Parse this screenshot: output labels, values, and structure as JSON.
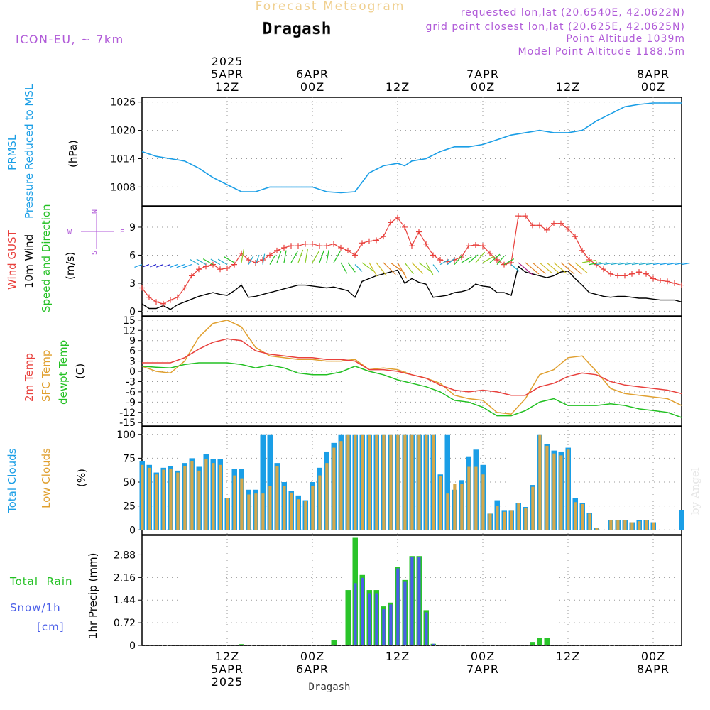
{
  "header": {
    "subtitle": "Forecast Meteogram",
    "location": "Dragash",
    "model": "ICON-EU, ~ 7km",
    "requested": "requested lon,lat (20.6540E, 42.0622N)",
    "grid_point": "grid point closest lon,lat (20.625E, 42.0625N)",
    "point_altitude": "Point Altitude 1039m",
    "model_altitude": "Model Point Altitude 1188.5m",
    "footer": "Dragash",
    "credit": "by Angel"
  },
  "time_axis": {
    "top_labels": [
      {
        "h": 12,
        "lines": [
          "2025",
          "5APR",
          "12Z"
        ]
      },
      {
        "h": 24,
        "lines": [
          "6APR",
          "00Z"
        ]
      },
      {
        "h": 36,
        "lines": [
          "12Z"
        ]
      },
      {
        "h": 48,
        "lines": [
          "7APR",
          "00Z"
        ]
      },
      {
        "h": 60,
        "lines": [
          "12Z"
        ]
      },
      {
        "h": 72,
        "lines": [
          "8APR",
          "00Z"
        ]
      }
    ],
    "bottom_labels": [
      {
        "h": 12,
        "lines": [
          "12Z",
          "5APR",
          "2025"
        ]
      },
      {
        "h": 24,
        "lines": [
          "00Z",
          "6APR"
        ]
      },
      {
        "h": 36,
        "lines": [
          "12Z"
        ]
      },
      {
        "h": 48,
        "lines": [
          "00Z",
          "7APR"
        ]
      },
      {
        "h": 60,
        "lines": [
          "12Z"
        ]
      },
      {
        "h": 72,
        "lines": [
          "00Z",
          "8APR"
        ]
      }
    ]
  },
  "panels": {
    "pressure": {
      "label1": "PRMSL",
      "label2": "Pressure Reduced to MSL",
      "unit": "(hPa)"
    },
    "wind": {
      "label_gust": "Wind GUST",
      "label_wind": "10m Wind",
      "label_dir": "Speed and Direction",
      "unit": "(m/s)",
      "compass_n": "N",
      "compass_s": "S",
      "compass_w": "W",
      "compass_e": "E"
    },
    "temp": {
      "label1": "2m Temp",
      "label2": "SFC Temp",
      "label3": "dewpt Temp",
      "unit": "(C)"
    },
    "clouds": {
      "label1": "Total Clouds",
      "label2": "Low Clouds",
      "unit": "(%)"
    },
    "precip": {
      "label_rain": "Total  Rain",
      "label_snow": "Snow/1h",
      "label_cm": "[cm]",
      "ylabel": "1hr Precip (mm)"
    }
  },
  "colors": {
    "pressure": "#1a9ee6",
    "gust": "#e8403c",
    "wind": "#000000",
    "temp2m": "#e8403c",
    "sfc": "#e0a030",
    "dewpt": "#22c022",
    "total_cloud": "#1a9ee6",
    "low_cloud": "#d4a84c",
    "rain": "#2ac42a",
    "snow": "#4a5ee8",
    "purple": "#b05ad8",
    "title_orange": "#f0d090"
  },
  "chart_data": [
    {
      "type": "line",
      "title": "PRMSL",
      "ylabel": "(hPa)",
      "yticks": [
        1008,
        1014,
        1020,
        1026
      ],
      "ylim": [
        1004,
        1027
      ],
      "x_hours": [
        0,
        2,
        4,
        6,
        8,
        10,
        12,
        14,
        16,
        18,
        20,
        22,
        24,
        26,
        28,
        30,
        32,
        34,
        36,
        37,
        38,
        40,
        42,
        44,
        46,
        48,
        50,
        52,
        54,
        56,
        58,
        60,
        62,
        64,
        66,
        68,
        70,
        72,
        74,
        76
      ],
      "series": [
        {
          "name": "PRMSL",
          "values": [
            1015.5,
            1014.5,
            1014,
            1013.5,
            1012,
            1010,
            1008.5,
            1007,
            1007,
            1008,
            1008,
            1008,
            1008,
            1007,
            1006.8,
            1007,
            1011,
            1012.5,
            1013,
            1012.5,
            1013.5,
            1014,
            1015.5,
            1016.5,
            1016.5,
            1017,
            1018,
            1019,
            1019.5,
            1020,
            1019.5,
            1019.5,
            1020,
            1022,
            1023.5,
            1025,
            1025.5,
            1025.8,
            1025.8,
            1025.8
          ]
        }
      ]
    },
    {
      "type": "line",
      "title": "Wind GUST / 10m Wind",
      "ylabel": "(m/s)",
      "yticks": [
        0,
        3,
        6,
        9
      ],
      "ylim": [
        -0.5,
        11.2
      ],
      "x_hours": [
        0,
        1,
        2,
        3,
        4,
        5,
        6,
        7,
        8,
        9,
        10,
        11,
        12,
        13,
        14,
        15,
        16,
        17,
        18,
        19,
        20,
        21,
        22,
        23,
        24,
        25,
        26,
        27,
        28,
        29,
        30,
        31,
        32,
        33,
        34,
        35,
        36,
        37,
        38,
        39,
        40,
        41,
        42,
        43,
        44,
        45,
        46,
        47,
        48,
        49,
        50,
        51,
        52,
        53,
        54,
        55,
        56,
        57,
        58,
        59,
        60,
        61,
        62,
        63,
        64,
        65,
        66,
        67,
        68,
        69,
        70,
        71,
        72,
        73,
        74,
        75,
        76
      ],
      "series": [
        {
          "name": "Wind GUST",
          "values": [
            2.5,
            1.5,
            1,
            0.8,
            1.2,
            1.5,
            2.5,
            3.8,
            4.5,
            4.8,
            5,
            4.5,
            4.6,
            5,
            6.2,
            5.5,
            5.2,
            5.5,
            6,
            6.5,
            6.8,
            7,
            7,
            7.2,
            7.2,
            7,
            7,
            7.2,
            6.8,
            6.5,
            6,
            7.3,
            7.5,
            7.6,
            8,
            9.5,
            10,
            9,
            7,
            8.5,
            7.2,
            6,
            5.5,
            5.3,
            5.5,
            5.8,
            7,
            7.1,
            7,
            6.2,
            5.5,
            5,
            5.2,
            10.2,
            10.2,
            9.2,
            9.2,
            8.7,
            9.4,
            9.4,
            8.8,
            8,
            6.5,
            5.5,
            5,
            4.5,
            4,
            3.8,
            3.8,
            4,
            4.2,
            4,
            3.5,
            3.3,
            3.2,
            3,
            2.8
          ]
        },
        {
          "name": "10m Wind",
          "values": [
            0.8,
            0.3,
            0.3,
            0.6,
            0.2,
            0.7,
            1,
            1.3,
            1.6,
            1.8,
            2,
            1.8,
            1.7,
            2.2,
            2.8,
            1.5,
            1.6,
            1.8,
            2,
            2.2,
            2.4,
            2.6,
            2.8,
            2.8,
            2.7,
            2.6,
            2.5,
            2.6,
            2.4,
            2.2,
            1.5,
            3.2,
            3.5,
            3.8,
            4,
            4.2,
            4.4,
            3,
            3.5,
            3.1,
            2.9,
            1.5,
            1.6,
            1.7,
            2,
            2.1,
            2.3,
            2.9,
            2.7,
            2.6,
            2,
            2,
            1.7,
            4.8,
            4.2,
            4,
            3.8,
            3.6,
            3.8,
            4.2,
            4.3,
            3.5,
            2.8,
            2,
            1.8,
            1.6,
            1.5,
            1.6,
            1.6,
            1.5,
            1.4,
            1.4,
            1.3,
            1.2,
            1.2,
            1.2,
            1
          ]
        }
      ]
    },
    {
      "type": "line",
      "title": "Temperature",
      "ylabel": "(C)",
      "yticks": [
        -15,
        -12,
        -9,
        -6,
        -3,
        0,
        3,
        6,
        9,
        12,
        15
      ],
      "ylim": [
        -16,
        16
      ],
      "x_hours": [
        0,
        2,
        4,
        6,
        8,
        10,
        12,
        14,
        16,
        18,
        20,
        22,
        24,
        26,
        28,
        30,
        32,
        34,
        36,
        38,
        40,
        42,
        44,
        46,
        48,
        50,
        52,
        54,
        56,
        58,
        60,
        62,
        64,
        66,
        68,
        70,
        72,
        74,
        76
      ],
      "series": [
        {
          "name": "2m Temp",
          "values": [
            2.5,
            2.5,
            2.5,
            4,
            6.5,
            8.5,
            9.5,
            9,
            6,
            5,
            4.5,
            4,
            4,
            3.5,
            3.5,
            3,
            0.5,
            0.5,
            0,
            -1,
            -2,
            -4,
            -5.5,
            -6,
            -5.5,
            -6,
            -7,
            -7,
            -4.5,
            -3.5,
            -1.5,
            -0.5,
            -1,
            -3,
            -4,
            -4.5,
            -5,
            -5.5,
            -6.5
          ]
        },
        {
          "name": "SFC Temp",
          "values": [
            1.5,
            0,
            -0.5,
            3,
            10,
            14,
            15,
            13,
            7,
            4.5,
            4,
            3.5,
            3.5,
            3,
            3,
            3.5,
            0.5,
            1,
            0.5,
            -1,
            -2,
            -3.5,
            -7,
            -8,
            -8.5,
            -12,
            -12.5,
            -8,
            -1,
            0.5,
            4,
            4.5,
            0,
            -5,
            -6.5,
            -7,
            -7.5,
            -8,
            -10
          ]
        },
        {
          "name": "dewpt Temp",
          "values": [
            1.5,
            1.2,
            1,
            2,
            2.5,
            2.5,
            2.5,
            2,
            1,
            1.8,
            1,
            -0.5,
            -1,
            -1,
            -0.2,
            1.5,
            0,
            -1,
            -2.5,
            -3.5,
            -4.5,
            -6,
            -8.5,
            -9,
            -10.5,
            -13,
            -13,
            -11.5,
            -9,
            -8,
            -10,
            -10,
            -10,
            -9.5,
            -10,
            -11,
            -11.5,
            -12,
            -13.5
          ]
        }
      ]
    },
    {
      "type": "bar",
      "title": "Clouds",
      "ylabel": "(%)",
      "yticks": [
        0,
        25,
        50,
        75,
        100
      ],
      "ylim": [
        -5,
        108
      ],
      "x_hours": [
        0,
        1,
        2,
        3,
        4,
        5,
        6,
        7,
        8,
        9,
        10,
        11,
        12,
        13,
        14,
        15,
        16,
        17,
        18,
        19,
        20,
        21,
        22,
        23,
        24,
        25,
        26,
        27,
        28,
        29,
        30,
        31,
        32,
        33,
        34,
        35,
        36,
        37,
        38,
        39,
        40,
        41,
        42,
        43,
        44,
        45,
        46,
        47,
        48,
        49,
        50,
        51,
        52,
        53,
        54,
        55,
        56,
        57,
        58,
        59,
        60,
        61,
        62,
        63,
        64,
        65,
        66,
        67,
        68,
        69,
        70,
        71,
        72,
        73,
        74,
        75,
        76
      ],
      "series": [
        {
          "name": "Total Clouds",
          "values": [
            72,
            68,
            60,
            65,
            67,
            62,
            70,
            75,
            66,
            79,
            74,
            74,
            33,
            64,
            64,
            42,
            42,
            100,
            100,
            70,
            50,
            41,
            36,
            31,
            50,
            65,
            82,
            91,
            100,
            100,
            100,
            100,
            100,
            100,
            100,
            100,
            100,
            100,
            100,
            100,
            100,
            100,
            58,
            100,
            42,
            52,
            77,
            84,
            68,
            17,
            31,
            20,
            20,
            28,
            24,
            47,
            100,
            90,
            83,
            82,
            86,
            33,
            28,
            18,
            2,
            0,
            10,
            10,
            10,
            8,
            10,
            10,
            8,
            0,
            0,
            0,
            21
          ]
        },
        {
          "name": "Low Clouds",
          "values": [
            68,
            65,
            58,
            63,
            64,
            60,
            67,
            72,
            62,
            74,
            70,
            68,
            33,
            57,
            54,
            37,
            38,
            38,
            46,
            67,
            46,
            39,
            32,
            30,
            46,
            57,
            70,
            86,
            93,
            100,
            100,
            100,
            100,
            100,
            100,
            100,
            100,
            100,
            100,
            100,
            100,
            100,
            56,
            38,
            48,
            48,
            66,
            66,
            58,
            17,
            25,
            19,
            20,
            28,
            23,
            45,
            100,
            88,
            80,
            78,
            84,
            29,
            27,
            17,
            2,
            0,
            10,
            10,
            10,
            8,
            9,
            10,
            8,
            0,
            0,
            0,
            0
          ]
        }
      ]
    },
    {
      "type": "bar",
      "title": "1hr Precip",
      "ylabel": "1hr Precip (mm)",
      "yticks": [
        0,
        0.72,
        1.44,
        2.16,
        2.88
      ],
      "ylim": [
        0,
        3.5
      ],
      "x_hours": [
        0,
        1,
        2,
        3,
        4,
        5,
        6,
        7,
        8,
        9,
        10,
        11,
        12,
        13,
        14,
        15,
        16,
        17,
        18,
        19,
        20,
        21,
        22,
        23,
        24,
        25,
        26,
        27,
        28,
        29,
        30,
        31,
        32,
        33,
        34,
        35,
        36,
        37,
        38,
        39,
        40,
        41,
        42,
        43,
        44,
        45,
        46,
        47,
        48,
        49,
        50,
        51,
        52,
        53,
        54,
        55,
        56,
        57,
        58,
        59,
        60,
        61,
        62,
        63,
        64,
        65,
        66,
        67,
        68,
        69,
        70,
        71,
        72,
        73,
        74,
        75,
        76
      ],
      "series": [
        {
          "name": "Total Rain",
          "values": [
            0,
            0,
            0,
            0,
            0,
            0,
            0,
            0,
            0,
            0,
            0,
            0,
            0,
            0,
            0.04,
            0,
            0,
            0,
            0,
            0,
            0,
            0,
            0,
            0,
            0,
            0,
            0,
            0.18,
            0,
            1.76,
            3.42,
            2.24,
            1.76,
            1.76,
            1.24,
            1.36,
            2.5,
            2.08,
            2.84,
            2.84,
            1.12,
            0.05,
            0,
            0,
            0,
            0,
            0,
            0,
            0,
            0,
            0,
            0,
            0,
            0,
            0,
            0.11,
            0.23,
            0.24,
            0,
            0,
            0,
            0,
            0,
            0,
            0,
            0,
            0,
            0,
            0,
            0,
            0,
            0,
            0,
            0,
            0,
            0,
            0
          ]
        },
        {
          "name": "Snow/1h",
          "values": [
            0,
            0,
            0,
            0,
            0,
            0,
            0,
            0,
            0,
            0,
            0,
            0,
            0,
            0,
            0,
            0,
            0,
            0,
            0,
            0,
            0,
            0,
            0,
            0,
            0,
            0,
            0,
            0,
            0,
            0,
            1.98,
            2.15,
            1.66,
            1.66,
            1.15,
            1.3,
            2.45,
            2.02,
            2.82,
            2.82,
            1.05,
            0.05,
            0,
            0,
            0,
            0,
            0,
            0,
            0,
            0,
            0,
            0,
            0,
            0,
            0,
            0,
            0,
            0,
            0,
            0,
            0,
            0,
            0,
            0,
            0,
            0,
            0,
            0,
            0,
            0,
            0,
            0,
            0,
            0,
            0,
            0,
            0
          ]
        }
      ]
    }
  ]
}
